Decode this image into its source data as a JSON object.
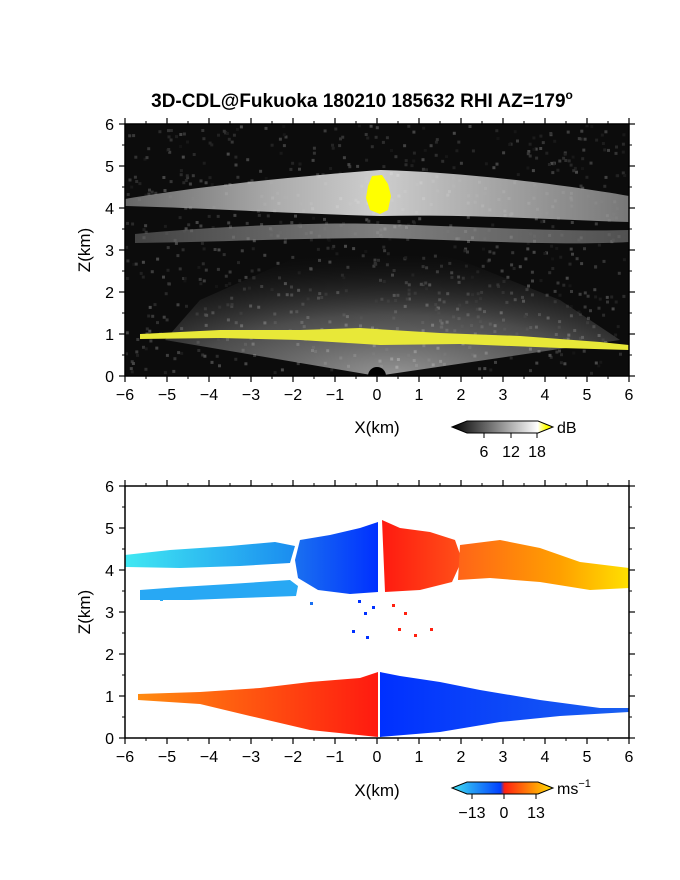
{
  "chart_data": [
    {
      "type": "heatmap",
      "title": "3D-CDL@Fukuoka 180210 185632 RHI AZ=179",
      "title_superscript": "o",
      "xlabel": "X(km)",
      "ylabel": "Z(km)",
      "xlim": [
        -6,
        6
      ],
      "ylim": [
        0,
        6
      ],
      "x_ticks": [
        -6,
        -5,
        -4,
        -3,
        -2,
        -1,
        0,
        1,
        2,
        3,
        4,
        5,
        6
      ],
      "y_ticks": [
        0,
        1,
        2,
        3,
        4,
        5,
        6
      ],
      "quantity": "signal intensity",
      "colorbar": {
        "unit": "dB",
        "ticks": [
          6,
          12,
          18
        ],
        "colors": [
          "#000000",
          "#ffffff",
          "#ffff00"
        ]
      },
      "background": "#0c0c0c",
      "bands": [
        {
          "z_km": 4.35,
          "x_km": [
            -6,
            6
          ],
          "level": "bright"
        },
        {
          "z_km": 3.4,
          "x_km": [
            -6,
            6
          ],
          "level": "medium"
        },
        {
          "z_km": 0.95,
          "x_km": [
            -5.6,
            6
          ],
          "level": "saturated"
        }
      ],
      "saturated_core": {
        "x_km": [
          -0.2,
          0.3
        ],
        "z_km": [
          3.9,
          4.75
        ]
      }
    },
    {
      "type": "heatmap",
      "xlabel": "X(km)",
      "ylabel": "Z(km)",
      "xlim": [
        -6,
        6
      ],
      "ylim": [
        0,
        6
      ],
      "x_ticks": [
        -6,
        -5,
        -4,
        -3,
        -2,
        -1,
        0,
        1,
        2,
        3,
        4,
        5,
        6
      ],
      "y_ticks": [
        0,
        1,
        2,
        3,
        4,
        5,
        6
      ],
      "quantity": "radial velocity",
      "colorbar": {
        "unit": "ms",
        "unit_exp": "−1",
        "ticks": [
          "−13",
          "0",
          "13"
        ],
        "colors": [
          "#40e0f0",
          "#0040ff",
          "#ff2010",
          "#ffe000"
        ]
      },
      "background": "#ffffff",
      "regions": [
        {
          "x_km": [
            -6,
            -2
          ],
          "z_km": [
            4.15,
            4.45
          ],
          "velocity_ms": -10
        },
        {
          "x_km": [
            -1.5,
            0
          ],
          "z_km": [
            3.8,
            4.95
          ],
          "velocity_ms": -4
        },
        {
          "x_km": [
            0.2,
            2
          ],
          "z_km": [
            3.8,
            5.05
          ],
          "velocity_ms": 3
        },
        {
          "x_km": [
            2,
            6
          ],
          "z_km": [
            3.7,
            4.8
          ],
          "velocity_ms": 10
        },
        {
          "x_km": [
            -5.5,
            -1.8
          ],
          "z_km": [
            3.3,
            3.6
          ],
          "velocity_ms": -9
        },
        {
          "x_km": [
            -6,
            0
          ],
          "z_km": [
            0.05,
            1.4
          ],
          "velocity_ms": 4
        },
        {
          "x_km": [
            0,
            6
          ],
          "z_km": [
            0.05,
            1.5
          ],
          "velocity_ms": -4
        }
      ]
    }
  ]
}
